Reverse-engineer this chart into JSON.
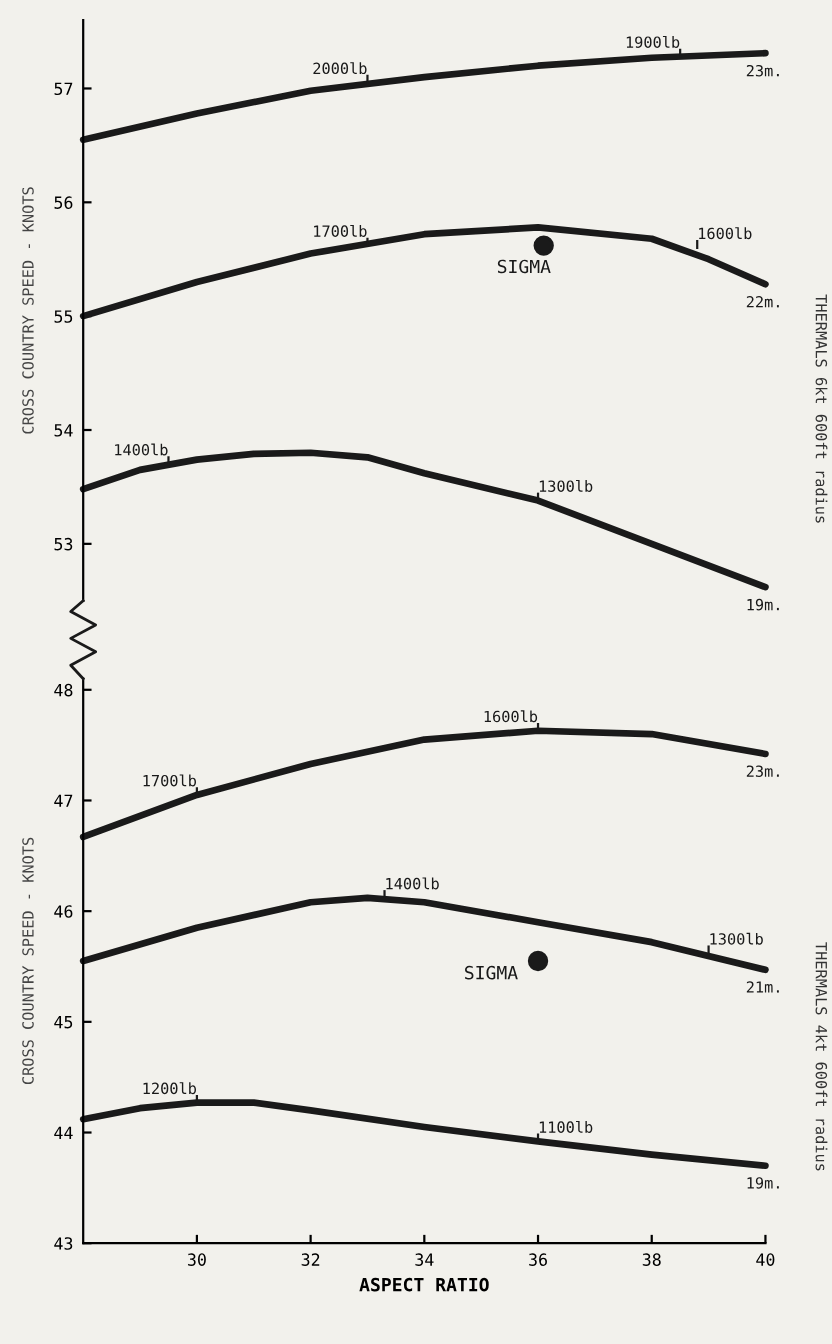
{
  "chart_data": [
    {
      "type": "line",
      "ylabel": "CROSS COUNTRY SPEED - KNOTS",
      "xlim": [
        28,
        40
      ],
      "ylim": [
        52.5,
        57.6
      ],
      "yticks": [
        53,
        54,
        55,
        56,
        57
      ],
      "tick_labels": "y",
      "grid": false,
      "legend": false,
      "series": [
        {
          "name": "23m.",
          "color": "#1a1a1a",
          "x": [
            28,
            30,
            32,
            34,
            36,
            38,
            40
          ],
          "values": [
            56.55,
            56.78,
            56.98,
            57.1,
            57.2,
            57.27,
            57.31
          ]
        },
        {
          "name": "22m.",
          "color": "#1a1a1a",
          "x": [
            28,
            30,
            32,
            34,
            36,
            38,
            39,
            40
          ],
          "values": [
            55.0,
            55.3,
            55.55,
            55.72,
            55.78,
            55.68,
            55.5,
            55.28
          ]
        },
        {
          "name": "19m.",
          "color": "#1a1a1a",
          "x": [
            28,
            29,
            30,
            31,
            32,
            33,
            34,
            36,
            38,
            40
          ],
          "values": [
            53.48,
            53.65,
            53.74,
            53.79,
            53.8,
            53.76,
            53.62,
            53.38,
            53.0,
            52.62
          ]
        },
        {
          "name": "SIGMA",
          "type": "scatter",
          "color": "#1a1a1a",
          "x": [
            36.1
          ],
          "values": [
            55.62
          ]
        }
      ],
      "annotations": [
        {
          "text": "2000lb",
          "x": 33,
          "y": 57.05
        },
        {
          "text": "1900lb",
          "x": 38.5,
          "y": 57.28
        },
        {
          "text": "1700lb",
          "x": 33,
          "y": 55.62
        },
        {
          "text": "1600lb",
          "x": 38.8,
          "y": 55.6
        },
        {
          "text": "1400lb",
          "x": 29.5,
          "y": 53.7
        },
        {
          "text": "1300lb",
          "x": 36,
          "y": 53.38
        },
        "THERMALS 6kt 600ft radius"
      ]
    },
    {
      "type": "line",
      "ylabel": "CROSS COUNTRY SPEED - KNOTS",
      "xlabel": "ASPECT RATIO",
      "xlim": [
        28,
        40
      ],
      "xticks": [
        30,
        32,
        34,
        36,
        38,
        40
      ],
      "ylim": [
        43,
        48.1
      ],
      "yticks": [
        43,
        44,
        45,
        46,
        47,
        48
      ],
      "grid": false,
      "legend": false,
      "series": [
        {
          "name": "23m.",
          "color": "#1a1a1a",
          "x": [
            28,
            30,
            32,
            34,
            36,
            38,
            40
          ],
          "values": [
            46.67,
            47.05,
            47.33,
            47.55,
            47.63,
            47.6,
            47.42
          ]
        },
        {
          "name": "21m.",
          "color": "#1a1a1a",
          "x": [
            28,
            30,
            32,
            33,
            34,
            36,
            38,
            40
          ],
          "values": [
            45.55,
            45.85,
            46.08,
            46.12,
            46.08,
            45.9,
            45.72,
            45.47
          ]
        },
        {
          "name": "19m.",
          "color": "#1a1a1a",
          "x": [
            28,
            29,
            30,
            31,
            32,
            34,
            36,
            38,
            40
          ],
          "values": [
            44.12,
            44.22,
            44.27,
            44.27,
            44.2,
            44.05,
            43.92,
            43.8,
            43.7
          ]
        },
        {
          "name": "SIGMA",
          "type": "scatter",
          "color": "#1a1a1a",
          "x": [
            36
          ],
          "values": [
            45.55
          ]
        }
      ],
      "annotations": [
        {
          "text": "1700lb",
          "x": 30,
          "y": 47.05
        },
        {
          "text": "1600lb",
          "x": 36,
          "y": 47.63
        },
        {
          "text": "1400lb",
          "x": 33.3,
          "y": 46.12
        },
        {
          "text": "1300lb",
          "x": 39,
          "y": 45.62
        },
        {
          "text": "1200lb",
          "x": 30,
          "y": 44.27
        },
        {
          "text": "1100lb",
          "x": 36,
          "y": 43.92
        },
        "THERMALS 4kt 600ft radius"
      ]
    }
  ]
}
